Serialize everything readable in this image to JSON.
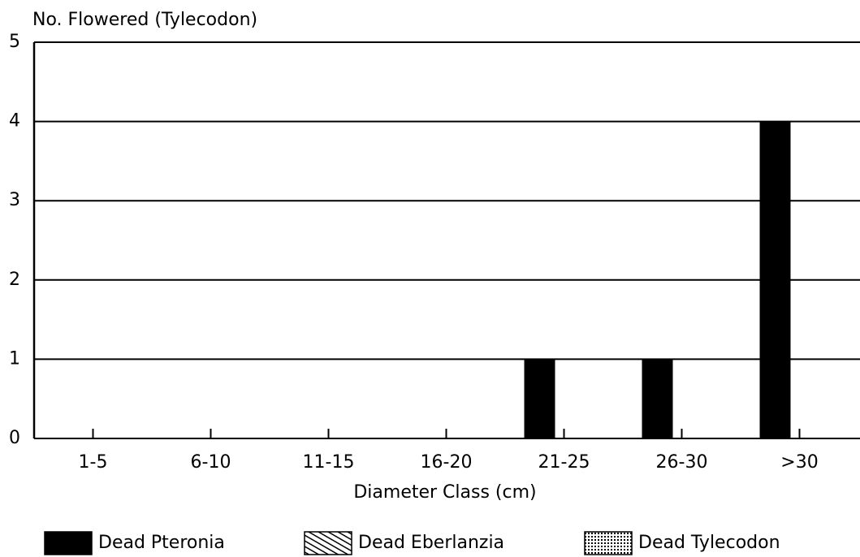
{
  "chart_data": {
    "type": "bar",
    "title": "No. Flowered (Tylecodon)",
    "x_label": "Diameter Class (cm)",
    "categories": [
      "1-5",
      "6-10",
      "11-15",
      "16-20",
      "21-25",
      "26-30",
      ">30"
    ],
    "series": [
      {
        "name": "Dead Pteronia",
        "color": "#000000",
        "pattern": "solid",
        "values": [
          0,
          0,
          0,
          0,
          1,
          1,
          4
        ]
      },
      {
        "name": "Dead Eberlanzia",
        "color": "#000000",
        "pattern": "hatch",
        "values": [
          0,
          0,
          0,
          0,
          0,
          0,
          0
        ]
      },
      {
        "name": "Dead Tylecodon",
        "color": "#000000",
        "pattern": "dots",
        "values": [
          0,
          0,
          0,
          0,
          0,
          0,
          0
        ]
      }
    ],
    "ylim": [
      0,
      5
    ],
    "yticks": [
      0,
      1,
      2,
      3,
      4,
      5
    ],
    "grid": true,
    "legend": "bottom"
  }
}
